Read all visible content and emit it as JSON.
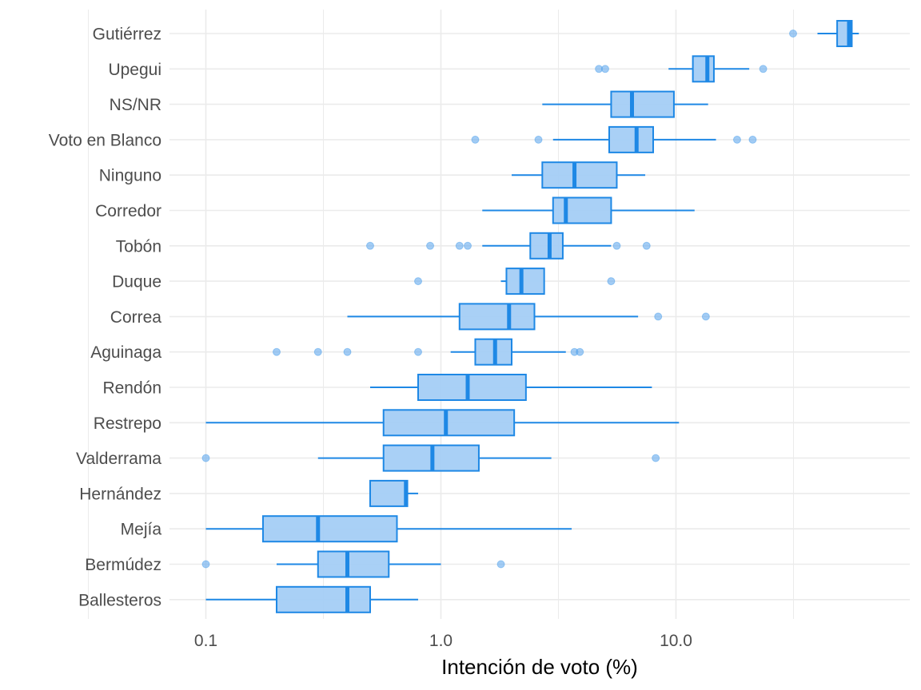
{
  "chart_data": {
    "type": "boxplot",
    "orientation": "horizontal",
    "xlabel": "Intención de voto (%)",
    "ylabel": "",
    "xscale": "log10",
    "xlim": [
      0.07,
      70
    ],
    "x_ticks": [
      0.1,
      1.0,
      10.0
    ],
    "x_tick_labels": [
      "0.1",
      "1.0",
      "10.0"
    ],
    "x_minor_grid": [
      0.03162,
      0.3162,
      3.162,
      31.62
    ],
    "grid": true,
    "legend": "none",
    "colors": {
      "fill": "#a4cdf6",
      "stroke": "#1e88e5",
      "grid": "#ebebeb"
    },
    "series": [
      {
        "name": "Gutiérrez",
        "whisker_low": 40,
        "q1": 48.5,
        "median": 54.5,
        "q3": 56,
        "whisker_high": 60,
        "outliers": [
          31.5
        ]
      },
      {
        "name": "Upegui",
        "whisker_low": 9.3,
        "q1": 11.8,
        "median": 13.6,
        "q3": 14.5,
        "whisker_high": 20.5,
        "outliers": [
          4.7,
          5.0,
          23.5
        ]
      },
      {
        "name": "NS/NR",
        "whisker_low": 2.7,
        "q1": 5.3,
        "median": 6.5,
        "q3": 9.8,
        "whisker_high": 13.7,
        "outliers": []
      },
      {
        "name": "Voto en Blanco",
        "whisker_low": 3.0,
        "q1": 5.2,
        "median": 6.8,
        "q3": 8.0,
        "whisker_high": 14.8,
        "outliers": [
          1.4,
          2.6,
          18.2,
          21.2
        ]
      },
      {
        "name": "Ninguno",
        "whisker_low": 2.0,
        "q1": 2.7,
        "median": 3.7,
        "q3": 5.6,
        "whisker_high": 7.4,
        "outliers": []
      },
      {
        "name": "Corredor",
        "whisker_low": 1.5,
        "q1": 3.0,
        "median": 3.4,
        "q3": 5.3,
        "whisker_high": 12.0,
        "outliers": []
      },
      {
        "name": "Tobón",
        "whisker_low": 1.5,
        "q1": 2.4,
        "median": 2.9,
        "q3": 3.3,
        "whisker_high": 5.3,
        "outliers": [
          0.5,
          0.9,
          1.2,
          1.3,
          5.6,
          7.5
        ]
      },
      {
        "name": "Duque",
        "whisker_low": 1.8,
        "q1": 1.9,
        "median": 2.2,
        "q3": 2.75,
        "whisker_high": 2.75,
        "outliers": [
          0.8,
          5.3
        ]
      },
      {
        "name": "Correa",
        "whisker_low": 0.4,
        "q1": 1.2,
        "median": 1.95,
        "q3": 2.5,
        "whisker_high": 6.9,
        "outliers": [
          8.4,
          13.4
        ]
      },
      {
        "name": "Aguinaga",
        "whisker_low": 1.1,
        "q1": 1.4,
        "median": 1.7,
        "q3": 2.0,
        "whisker_high": 3.4,
        "outliers": [
          0.2,
          0.3,
          0.4,
          0.8,
          3.7,
          3.9
        ]
      },
      {
        "name": "Rendón",
        "whisker_low": 0.5,
        "q1": 0.8,
        "median": 1.3,
        "q3": 2.3,
        "whisker_high": 7.9,
        "outliers": []
      },
      {
        "name": "Restrepo",
        "whisker_low": 0.1,
        "q1": 0.57,
        "median": 1.05,
        "q3": 2.05,
        "whisker_high": 10.3,
        "outliers": []
      },
      {
        "name": "Valderrama",
        "whisker_low": 0.3,
        "q1": 0.57,
        "median": 0.92,
        "q3": 1.45,
        "whisker_high": 2.95,
        "outliers": [
          0.1,
          8.2
        ]
      },
      {
        "name": "Hernández",
        "whisker_low": 0.5,
        "q1": 0.5,
        "median": 0.71,
        "q3": 0.72,
        "whisker_high": 0.8,
        "outliers": []
      },
      {
        "name": "Mejía",
        "whisker_low": 0.1,
        "q1": 0.175,
        "median": 0.3,
        "q3": 0.65,
        "whisker_high": 3.6,
        "outliers": []
      },
      {
        "name": "Bermúdez",
        "whisker_low": 0.2,
        "q1": 0.3,
        "median": 0.4,
        "q3": 0.6,
        "whisker_high": 1.0,
        "outliers": [
          0.1,
          1.8
        ]
      },
      {
        "name": "Ballesteros",
        "whisker_low": 0.1,
        "q1": 0.2,
        "median": 0.4,
        "q3": 0.5,
        "whisker_high": 0.8,
        "outliers": []
      }
    ]
  }
}
